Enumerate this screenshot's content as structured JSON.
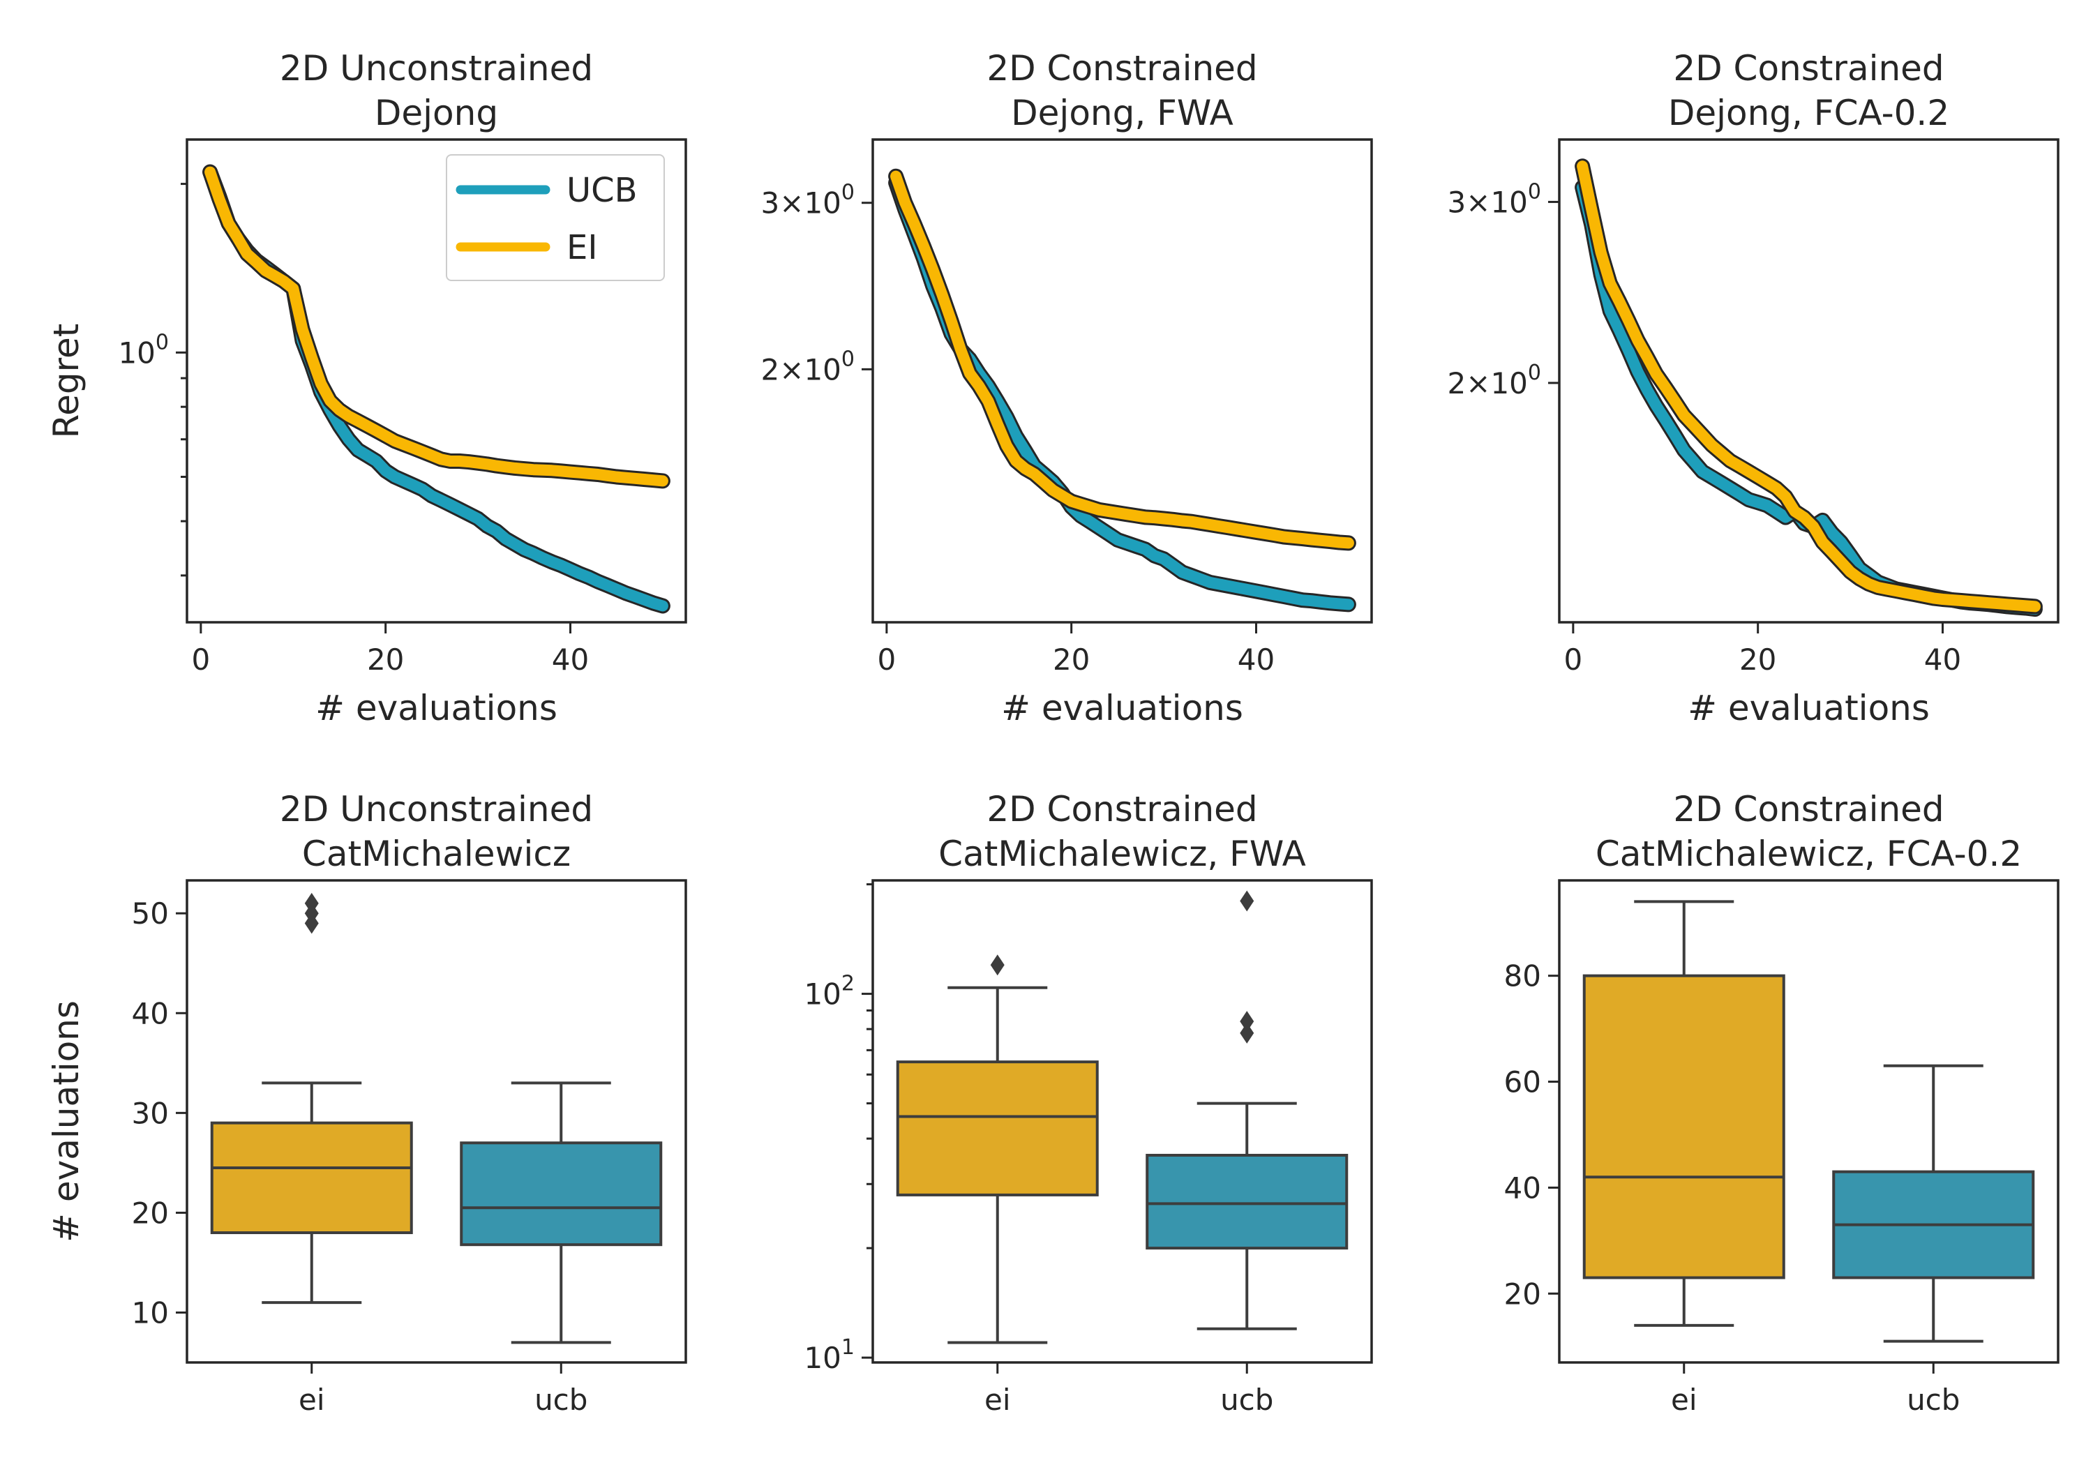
{
  "colors": {
    "ucb": "#1e9fbb",
    "ei": "#f9b703",
    "ucb_box": "#3895ad",
    "ei_box": "#e0aa26",
    "edge": "#3d3d3d"
  },
  "legend": {
    "ucb": "UCB",
    "ei": "EI"
  },
  "chart_data": [
    {
      "type": "line",
      "title": [
        "2D Unconstrained",
        "Dejong"
      ],
      "xlabel": "# evaluations",
      "ylabel": "Regret",
      "xlim": [
        -1.5,
        52.5
      ],
      "yscale": "log",
      "ylim": [
        0.33,
        2.4
      ],
      "xticks": [
        0,
        20,
        40
      ],
      "yticks": [
        {
          "value": 1.0,
          "label": "10",
          "exp": "0"
        }
      ],
      "yminor": [
        0.4,
        0.5,
        0.6,
        0.7,
        0.8,
        0.9,
        2.0
      ],
      "legend": "top-right",
      "series": [
        {
          "name": "UCB",
          "key": "ucb",
          "x": [
            1,
            2,
            3,
            4,
            5,
            6,
            7,
            8,
            9,
            10,
            11,
            12,
            13,
            14,
            15,
            16,
            17,
            18,
            19,
            20,
            21,
            22,
            23,
            24,
            25,
            26,
            27,
            28,
            29,
            30,
            31,
            32,
            33,
            34,
            35,
            36,
            37,
            38,
            39,
            40,
            41,
            42,
            43,
            44,
            45,
            46,
            47,
            48,
            49,
            50
          ],
          "y": [
            2.1,
            1.9,
            1.7,
            1.6,
            1.52,
            1.46,
            1.42,
            1.38,
            1.34,
            1.3,
            1.05,
            0.95,
            0.85,
            0.79,
            0.74,
            0.7,
            0.67,
            0.655,
            0.64,
            0.615,
            0.6,
            0.59,
            0.58,
            0.57,
            0.555,
            0.545,
            0.535,
            0.525,
            0.515,
            0.505,
            0.49,
            0.48,
            0.465,
            0.455,
            0.445,
            0.438,
            0.43,
            0.423,
            0.417,
            0.41,
            0.403,
            0.397,
            0.39,
            0.384,
            0.378,
            0.372,
            0.367,
            0.362,
            0.357,
            0.353
          ]
        },
        {
          "name": "EI",
          "key": "ei",
          "x": [
            1,
            2,
            3,
            4,
            5,
            6,
            7,
            8,
            9,
            10,
            11,
            12,
            13,
            14,
            15,
            16,
            17,
            18,
            19,
            20,
            21,
            22,
            23,
            24,
            25,
            26,
            27,
            28,
            29,
            30,
            31,
            32,
            33,
            34,
            35,
            36,
            37,
            38,
            39,
            40,
            41,
            42,
            43,
            44,
            45,
            46,
            47,
            48,
            49,
            50
          ],
          "y": [
            2.1,
            1.88,
            1.7,
            1.6,
            1.5,
            1.45,
            1.4,
            1.37,
            1.34,
            1.3,
            1.1,
            0.98,
            0.88,
            0.82,
            0.79,
            0.77,
            0.755,
            0.74,
            0.725,
            0.71,
            0.695,
            0.685,
            0.675,
            0.665,
            0.655,
            0.645,
            0.64,
            0.64,
            0.638,
            0.635,
            0.632,
            0.628,
            0.625,
            0.622,
            0.62,
            0.618,
            0.617,
            0.616,
            0.614,
            0.612,
            0.61,
            0.608,
            0.606,
            0.603,
            0.6,
            0.598,
            0.596,
            0.594,
            0.592,
            0.59
          ]
        }
      ]
    },
    {
      "type": "line",
      "title": [
        "2D Constrained",
        "Dejong, FWA"
      ],
      "xlabel": "# evaluations",
      "ylabel": "",
      "xlim": [
        -1.5,
        52.5
      ],
      "yscale": "log",
      "ylim": [
        1.08,
        3.5
      ],
      "xticks": [
        0,
        20,
        40
      ],
      "yticks": [
        {
          "value": 3.0,
          "label": "3×10",
          "exp": "0"
        },
        {
          "value": 2.0,
          "label": "2×10",
          "exp": "0"
        }
      ],
      "yminor": [],
      "series": [
        {
          "name": "UCB",
          "key": "ucb",
          "x": [
            1,
            2,
            3,
            4,
            5,
            6,
            7,
            8,
            9,
            10,
            11,
            12,
            13,
            14,
            15,
            16,
            17,
            18,
            19,
            20,
            21,
            22,
            23,
            24,
            25,
            26,
            27,
            28,
            29,
            30,
            31,
            32,
            33,
            34,
            35,
            36,
            37,
            38,
            39,
            40,
            41,
            42,
            43,
            44,
            45,
            46,
            47,
            48,
            49,
            50
          ],
          "y": [
            3.15,
            2.95,
            2.78,
            2.62,
            2.45,
            2.32,
            2.18,
            2.1,
            2.05,
            1.98,
            1.92,
            1.85,
            1.78,
            1.7,
            1.64,
            1.58,
            1.55,
            1.52,
            1.48,
            1.43,
            1.4,
            1.38,
            1.36,
            1.34,
            1.32,
            1.31,
            1.3,
            1.29,
            1.27,
            1.26,
            1.24,
            1.22,
            1.21,
            1.2,
            1.19,
            1.185,
            1.18,
            1.175,
            1.17,
            1.165,
            1.16,
            1.155,
            1.15,
            1.145,
            1.14,
            1.138,
            1.135,
            1.132,
            1.13,
            1.128
          ]
        },
        {
          "name": "EI",
          "key": "ei",
          "x": [
            1,
            2,
            3,
            4,
            5,
            6,
            7,
            8,
            9,
            10,
            11,
            12,
            13,
            14,
            15,
            16,
            17,
            18,
            19,
            20,
            21,
            22,
            23,
            24,
            25,
            26,
            27,
            28,
            29,
            30,
            31,
            32,
            33,
            34,
            35,
            36,
            37,
            38,
            39,
            40,
            41,
            42,
            43,
            44,
            45,
            46,
            47,
            48,
            49,
            50
          ],
          "y": [
            3.2,
            3.0,
            2.85,
            2.7,
            2.55,
            2.4,
            2.25,
            2.1,
            1.98,
            1.92,
            1.85,
            1.75,
            1.66,
            1.6,
            1.57,
            1.55,
            1.52,
            1.49,
            1.47,
            1.45,
            1.44,
            1.43,
            1.42,
            1.415,
            1.41,
            1.405,
            1.4,
            1.395,
            1.393,
            1.39,
            1.387,
            1.383,
            1.38,
            1.375,
            1.37,
            1.365,
            1.36,
            1.355,
            1.35,
            1.345,
            1.34,
            1.335,
            1.33,
            1.327,
            1.324,
            1.321,
            1.318,
            1.315,
            1.312,
            1.31
          ]
        }
      ]
    },
    {
      "type": "line",
      "title": [
        "2D Constrained",
        "Dejong, FCA-0.2"
      ],
      "xlabel": "# evaluations",
      "ylabel": "",
      "xlim": [
        -1.5,
        52.5
      ],
      "yscale": "log",
      "ylim": [
        1.17,
        3.45
      ],
      "xticks": [
        0,
        20,
        40
      ],
      "yticks": [
        {
          "value": 3.0,
          "label": "3×10",
          "exp": "0"
        },
        {
          "value": 2.0,
          "label": "2×10",
          "exp": "0"
        }
      ],
      "yminor": [],
      "series": [
        {
          "name": "UCB",
          "key": "ucb",
          "x": [
            1,
            2,
            3,
            4,
            5,
            6,
            7,
            8,
            9,
            10,
            11,
            12,
            13,
            14,
            15,
            16,
            17,
            18,
            19,
            20,
            21,
            22,
            23,
            24,
            25,
            26,
            27,
            28,
            29,
            30,
            31,
            32,
            33,
            34,
            35,
            36,
            37,
            38,
            39,
            40,
            41,
            42,
            43,
            44,
            45,
            46,
            47,
            48,
            49,
            50
          ],
          "y": [
            3.1,
            2.85,
            2.55,
            2.35,
            2.25,
            2.15,
            2.05,
            1.97,
            1.9,
            1.84,
            1.78,
            1.72,
            1.68,
            1.64,
            1.62,
            1.6,
            1.58,
            1.56,
            1.54,
            1.53,
            1.52,
            1.5,
            1.48,
            1.5,
            1.46,
            1.45,
            1.47,
            1.43,
            1.4,
            1.36,
            1.32,
            1.3,
            1.28,
            1.27,
            1.26,
            1.255,
            1.25,
            1.245,
            1.24,
            1.235,
            1.23,
            1.225,
            1.222,
            1.22,
            1.218,
            1.215,
            1.212,
            1.21,
            1.208,
            1.205
          ]
        },
        {
          "name": "EI",
          "key": "ei",
          "x": [
            1,
            2,
            3,
            4,
            5,
            6,
            7,
            8,
            9,
            10,
            11,
            12,
            13,
            14,
            15,
            16,
            17,
            18,
            19,
            20,
            21,
            22,
            23,
            24,
            25,
            26,
            27,
            28,
            29,
            30,
            31,
            32,
            33,
            34,
            35,
            36,
            37,
            38,
            39,
            40,
            41,
            42,
            43,
            44,
            45,
            46,
            47,
            48,
            49,
            50
          ],
          "y": [
            3.25,
            2.95,
            2.68,
            2.5,
            2.4,
            2.3,
            2.2,
            2.12,
            2.04,
            1.98,
            1.92,
            1.86,
            1.82,
            1.78,
            1.74,
            1.71,
            1.68,
            1.66,
            1.64,
            1.62,
            1.6,
            1.58,
            1.55,
            1.5,
            1.48,
            1.45,
            1.4,
            1.37,
            1.34,
            1.31,
            1.29,
            1.275,
            1.265,
            1.26,
            1.255,
            1.25,
            1.245,
            1.24,
            1.235,
            1.232,
            1.23,
            1.228,
            1.226,
            1.224,
            1.222,
            1.22,
            1.218,
            1.216,
            1.214,
            1.212
          ]
        }
      ]
    },
    {
      "type": "box",
      "title": [
        "2D Unconstrained",
        "CatMichalewicz"
      ],
      "xlabel": "",
      "ylabel": "# evaluations",
      "yscale": "linear",
      "ylim": [
        5,
        53.3
      ],
      "yticks": [
        10,
        20,
        30,
        40,
        50
      ],
      "categories": [
        "ei",
        "ucb"
      ],
      "boxes": [
        {
          "category": "ei",
          "key": "ei",
          "whisker_low": 11,
          "q1": 18,
          "median": 24.5,
          "q3": 29,
          "whisker_high": 33,
          "outliers": [
            49,
            50,
            51
          ]
        },
        {
          "category": "ucb",
          "key": "ucb",
          "whisker_low": 7,
          "q1": 16.8,
          "median": 20.5,
          "q3": 27,
          "whisker_high": 33,
          "outliers": []
        }
      ]
    },
    {
      "type": "box",
      "title": [
        "2D Constrained",
        "CatMichalewicz, FWA"
      ],
      "xlabel": "",
      "ylabel": "",
      "yscale": "log",
      "ylim": [
        9.7,
        205
      ],
      "yticks": [
        {
          "value": 10,
          "label": "10",
          "exp": "1"
        },
        {
          "value": 100,
          "label": "10",
          "exp": "2"
        }
      ],
      "yminor": [
        20,
        30,
        40,
        50,
        60,
        70,
        80,
        90,
        200
      ],
      "categories": [
        "ei",
        "ucb"
      ],
      "boxes": [
        {
          "category": "ei",
          "key": "ei",
          "whisker_low": 11,
          "q1": 28,
          "median": 46,
          "q3": 65,
          "whisker_high": 104,
          "outliers": [
            120
          ]
        },
        {
          "category": "ucb",
          "key": "ucb",
          "whisker_low": 12,
          "q1": 20,
          "median": 26.5,
          "q3": 36,
          "whisker_high": 50,
          "outliers": [
            78,
            84,
            180
          ]
        }
      ]
    },
    {
      "type": "box",
      "title": [
        "2D Constrained",
        "CatMichalewicz, FCA-0.2"
      ],
      "xlabel": "",
      "ylabel": "",
      "yscale": "linear",
      "ylim": [
        7,
        98
      ],
      "yticks": [
        20,
        40,
        60,
        80
      ],
      "categories": [
        "ei",
        "ucb"
      ],
      "boxes": [
        {
          "category": "ei",
          "key": "ei",
          "whisker_low": 14,
          "q1": 23,
          "median": 42,
          "q3": 80,
          "whisker_high": 94,
          "outliers": []
        },
        {
          "category": "ucb",
          "key": "ucb",
          "whisker_low": 11,
          "q1": 23,
          "median": 33,
          "q3": 43,
          "whisker_high": 63,
          "outliers": []
        }
      ]
    }
  ]
}
